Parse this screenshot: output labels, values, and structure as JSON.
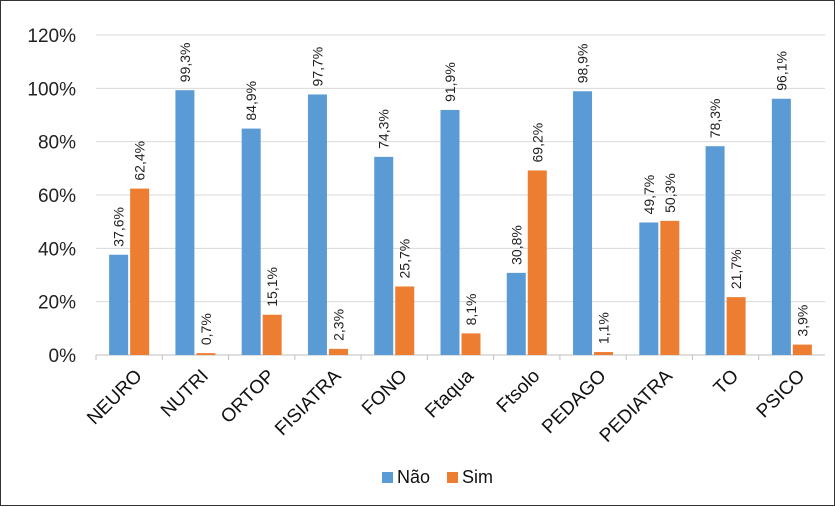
{
  "chart_data": {
    "type": "bar",
    "categories": [
      "NEURO",
      "NUTRI",
      "ORTOP",
      "FISIATRA",
      "FONO",
      "Ftaqua",
      "Ftsolo",
      "PEDAGO",
      "PEDIATRA",
      "TO",
      "PSICO"
    ],
    "series": [
      {
        "name": "Não",
        "color": "#5b9bd5",
        "values": [
          37.6,
          99.3,
          84.9,
          97.7,
          74.3,
          91.9,
          30.8,
          98.9,
          49.7,
          78.3,
          96.1
        ],
        "labels": [
          "37,6%",
          "99,3%",
          "84,9%",
          "97,7%",
          "74,3%",
          "91,9%",
          "30,8%",
          "98,9%",
          "49,7%",
          "78,3%",
          "96,1%"
        ]
      },
      {
        "name": "Sim",
        "color": "#ed7d31",
        "values": [
          62.4,
          0.7,
          15.1,
          2.3,
          25.7,
          8.1,
          69.2,
          1.1,
          50.3,
          21.7,
          3.9
        ],
        "labels": [
          "62,4%",
          "0,7%",
          "15,1%",
          "2,3%",
          "25,7%",
          "8,1%",
          "69,2%",
          "1,1%",
          "50,3%",
          "21,7%",
          "3,9%"
        ]
      }
    ],
    "y_ticks": [
      0,
      20,
      40,
      60,
      80,
      100,
      120
    ],
    "y_tick_labels": [
      "0%",
      "20%",
      "40%",
      "60%",
      "80%",
      "100%",
      "120%"
    ],
    "ylim": [
      0,
      120
    ],
    "grid": true,
    "legend_position": "bottom"
  }
}
